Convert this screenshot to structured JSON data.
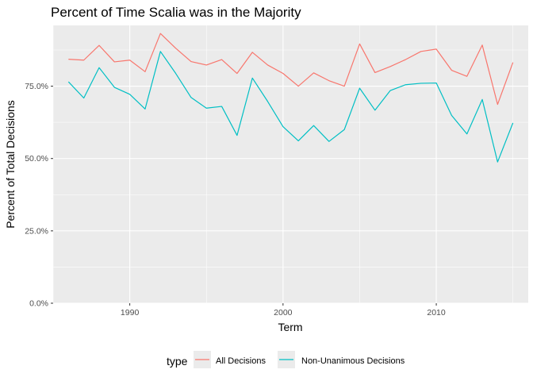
{
  "chart_data": {
    "type": "line",
    "title": "Percent of Time Scalia was in the Majority",
    "xlabel": "Term",
    "ylabel": "Percent of Total Decisions",
    "xlim": [
      1985,
      2016
    ],
    "ylim": [
      0,
      0.96
    ],
    "x_ticks": [
      1990,
      2000,
      2010
    ],
    "x_tick_labels": [
      "1990",
      "2000",
      "2010"
    ],
    "y_ticks": [
      0,
      0.25,
      0.5,
      0.75
    ],
    "y_tick_labels": [
      "0.0%",
      "25.0%",
      "50.0%",
      "75.0%"
    ],
    "grid": true,
    "background": "#ebebeb",
    "legend": {
      "title": "type",
      "position": "bottom",
      "entries": [
        "All Decisions",
        "Non-Unanimous Decisions"
      ]
    },
    "x": [
      1986,
      1987,
      1988,
      1989,
      1990,
      1991,
      1992,
      1993,
      1994,
      1995,
      1996,
      1997,
      1998,
      1999,
      2000,
      2001,
      2002,
      2003,
      2004,
      2005,
      2006,
      2007,
      2008,
      2009,
      2010,
      2011,
      2012,
      2013,
      2014,
      2015
    ],
    "series": [
      {
        "name": "All Decisions",
        "color": "#f8766d",
        "values": [
          0.843,
          0.84,
          0.891,
          0.834,
          0.84,
          0.8,
          0.932,
          0.881,
          0.835,
          0.823,
          0.842,
          0.794,
          0.867,
          0.823,
          0.794,
          0.75,
          0.796,
          0.769,
          0.75,
          0.896,
          0.797,
          0.818,
          0.842,
          0.87,
          0.878,
          0.805,
          0.784,
          0.892,
          0.687,
          0.832
        ]
      },
      {
        "name": "Non-Unanimous Decisions",
        "color": "#00bfc4",
        "values": [
          0.765,
          0.709,
          0.814,
          0.746,
          0.722,
          0.671,
          0.87,
          0.794,
          0.711,
          0.674,
          0.68,
          0.58,
          0.778,
          0.697,
          0.61,
          0.561,
          0.614,
          0.559,
          0.6,
          0.743,
          0.667,
          0.735,
          0.755,
          0.76,
          0.761,
          0.649,
          0.585,
          0.704,
          0.488,
          0.623
        ]
      }
    ]
  }
}
